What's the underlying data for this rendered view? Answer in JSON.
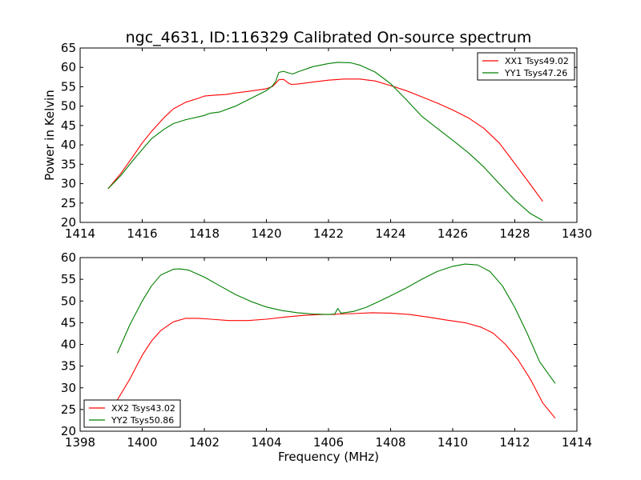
{
  "figure": {
    "title": "ngc_4631, ID:116329 Calibrated On-source spectrum",
    "colors": {
      "red": "#ff0000",
      "green": "#007f00",
      "axes": "#000000"
    }
  },
  "chart_data": [
    {
      "type": "line",
      "title": "ngc_4631, ID:116329 Calibrated On-source spectrum",
      "xlabel": "",
      "ylabel": "Power in Kelvin",
      "xlim": [
        1414,
        1430
      ],
      "ylim": [
        20,
        65
      ],
      "xticks": [
        1414,
        1416,
        1418,
        1420,
        1422,
        1424,
        1426,
        1428,
        1430
      ],
      "yticks": [
        20,
        25,
        30,
        35,
        40,
        45,
        50,
        55,
        60,
        65
      ],
      "grid": false,
      "legend_position": "upper right",
      "series": [
        {
          "name": "XX1 Tsys49.02",
          "color": "#ff0000",
          "points": [
            [
              1414.9,
              28.7
            ],
            [
              1415.3,
              32.5
            ],
            [
              1415.7,
              37
            ],
            [
              1416.0,
              40.5
            ],
            [
              1416.3,
              43.5
            ],
            [
              1416.7,
              47.0
            ],
            [
              1417.0,
              49.3
            ],
            [
              1417.4,
              51.0
            ],
            [
              1417.8,
              52.0
            ],
            [
              1418.0,
              52.6
            ],
            [
              1418.3,
              52.8
            ],
            [
              1418.7,
              53.0
            ],
            [
              1419.0,
              53.4
            ],
            [
              1419.5,
              53.9
            ],
            [
              1420.0,
              54.5
            ],
            [
              1420.2,
              55.1
            ],
            [
              1420.3,
              55.9
            ],
            [
              1420.4,
              56.8
            ],
            [
              1420.55,
              56.9
            ],
            [
              1420.7,
              56.0
            ],
            [
              1420.8,
              55.6
            ],
            [
              1421.0,
              55.7
            ],
            [
              1421.5,
              56.2
            ],
            [
              1422.0,
              56.7
            ],
            [
              1422.5,
              57.0
            ],
            [
              1423.0,
              57.0
            ],
            [
              1423.5,
              56.5
            ],
            [
              1424.0,
              55.3
            ],
            [
              1424.5,
              54.0
            ],
            [
              1425.0,
              52.4
            ],
            [
              1425.5,
              50.8
            ],
            [
              1426.0,
              49.0
            ],
            [
              1426.5,
              47.0
            ],
            [
              1427.0,
              44.3
            ],
            [
              1427.5,
              40.5
            ],
            [
              1428.0,
              35.2
            ],
            [
              1428.5,
              29.8
            ],
            [
              1428.9,
              25.4
            ]
          ]
        },
        {
          "name": "YY1 Tsys47.26",
          "color": "#007f00",
          "points": [
            [
              1414.9,
              28.7
            ],
            [
              1415.3,
              32.0
            ],
            [
              1415.7,
              36.0
            ],
            [
              1416.0,
              38.8
            ],
            [
              1416.3,
              41.6
            ],
            [
              1416.7,
              44.0
            ],
            [
              1417.0,
              45.5
            ],
            [
              1417.4,
              46.5
            ],
            [
              1417.8,
              47.2
            ],
            [
              1418.0,
              47.6
            ],
            [
              1418.2,
              48.2
            ],
            [
              1418.5,
              48.5
            ],
            [
              1419.0,
              50.0
            ],
            [
              1419.5,
              52.0
            ],
            [
              1420.0,
              54.0
            ],
            [
              1420.2,
              55.3
            ],
            [
              1420.3,
              56.4
            ],
            [
              1420.4,
              58.7
            ],
            [
              1420.55,
              59.0
            ],
            [
              1420.7,
              58.6
            ],
            [
              1420.85,
              58.3
            ],
            [
              1421.0,
              58.8
            ],
            [
              1421.5,
              60.2
            ],
            [
              1422.0,
              61.0
            ],
            [
              1422.3,
              61.3
            ],
            [
              1422.7,
              61.2
            ],
            [
              1423.0,
              60.6
            ],
            [
              1423.5,
              58.8
            ],
            [
              1424.0,
              55.8
            ],
            [
              1424.5,
              51.7
            ],
            [
              1425.0,
              47.4
            ],
            [
              1425.5,
              44.3
            ],
            [
              1426.0,
              41.2
            ],
            [
              1426.5,
              38.0
            ],
            [
              1427.0,
              34.3
            ],
            [
              1427.5,
              30.0
            ],
            [
              1428.0,
              25.8
            ],
            [
              1428.5,
              22.3
            ],
            [
              1428.9,
              20.5
            ]
          ]
        }
      ]
    },
    {
      "type": "line",
      "title": "",
      "xlabel": "Frequency (MHz)",
      "ylabel": "",
      "xlim": [
        1398,
        1414
      ],
      "ylim": [
        20,
        60
      ],
      "xticks": [
        1398,
        1400,
        1402,
        1404,
        1406,
        1408,
        1410,
        1412,
        1414
      ],
      "yticks": [
        20,
        25,
        30,
        35,
        40,
        45,
        50,
        55,
        60
      ],
      "grid": false,
      "legend_position": "lower left",
      "series": [
        {
          "name": "XX2 Tsys43.02",
          "color": "#ff0000",
          "points": [
            [
              1399.2,
              27.2
            ],
            [
              1399.6,
              32.0
            ],
            [
              1400.0,
              37.5
            ],
            [
              1400.3,
              40.8
            ],
            [
              1400.6,
              43.2
            ],
            [
              1401.0,
              45.2
            ],
            [
              1401.4,
              46.0
            ],
            [
              1401.8,
              46.0
            ],
            [
              1402.2,
              45.8
            ],
            [
              1402.8,
              45.5
            ],
            [
              1403.4,
              45.5
            ],
            [
              1404.0,
              45.8
            ],
            [
              1404.6,
              46.3
            ],
            [
              1405.2,
              46.7
            ],
            [
              1405.8,
              46.9
            ],
            [
              1406.2,
              46.9
            ],
            [
              1406.3,
              47.0
            ],
            [
              1406.8,
              47.1
            ],
            [
              1407.4,
              47.3
            ],
            [
              1408.0,
              47.2
            ],
            [
              1408.6,
              46.9
            ],
            [
              1409.2,
              46.3
            ],
            [
              1409.8,
              45.6
            ],
            [
              1410.4,
              45.0
            ],
            [
              1410.9,
              44.0
            ],
            [
              1411.3,
              42.6
            ],
            [
              1411.7,
              40.0
            ],
            [
              1412.1,
              36.5
            ],
            [
              1412.5,
              32.0
            ],
            [
              1412.9,
              26.5
            ],
            [
              1413.3,
              23.0
            ]
          ]
        },
        {
          "name": "YY2 Tsys50.86",
          "color": "#007f00",
          "points": [
            [
              1399.2,
              38.0
            ],
            [
              1399.6,
              44.5
            ],
            [
              1400.0,
              50.0
            ],
            [
              1400.3,
              53.5
            ],
            [
              1400.6,
              56.0
            ],
            [
              1401.0,
              57.3
            ],
            [
              1401.2,
              57.4
            ],
            [
              1401.5,
              57.1
            ],
            [
              1402.0,
              55.5
            ],
            [
              1402.5,
              53.5
            ],
            [
              1403.0,
              51.5
            ],
            [
              1403.5,
              49.9
            ],
            [
              1404.0,
              48.6
            ],
            [
              1404.5,
              47.8
            ],
            [
              1405.0,
              47.3
            ],
            [
              1405.5,
              47.0
            ],
            [
              1406.0,
              46.9
            ],
            [
              1406.2,
              47.0
            ],
            [
              1406.3,
              48.3
            ],
            [
              1406.4,
              47.2
            ],
            [
              1406.8,
              47.6
            ],
            [
              1407.2,
              48.5
            ],
            [
              1407.6,
              49.8
            ],
            [
              1408.0,
              51.2
            ],
            [
              1408.5,
              53.0
            ],
            [
              1409.0,
              55.0
            ],
            [
              1409.5,
              56.8
            ],
            [
              1410.0,
              58.0
            ],
            [
              1410.4,
              58.5
            ],
            [
              1410.8,
              58.3
            ],
            [
              1411.2,
              56.8
            ],
            [
              1411.6,
              53.5
            ],
            [
              1412.0,
              48.5
            ],
            [
              1412.4,
              42.5
            ],
            [
              1412.8,
              36.0
            ],
            [
              1413.3,
              31.0
            ]
          ]
        }
      ]
    }
  ]
}
